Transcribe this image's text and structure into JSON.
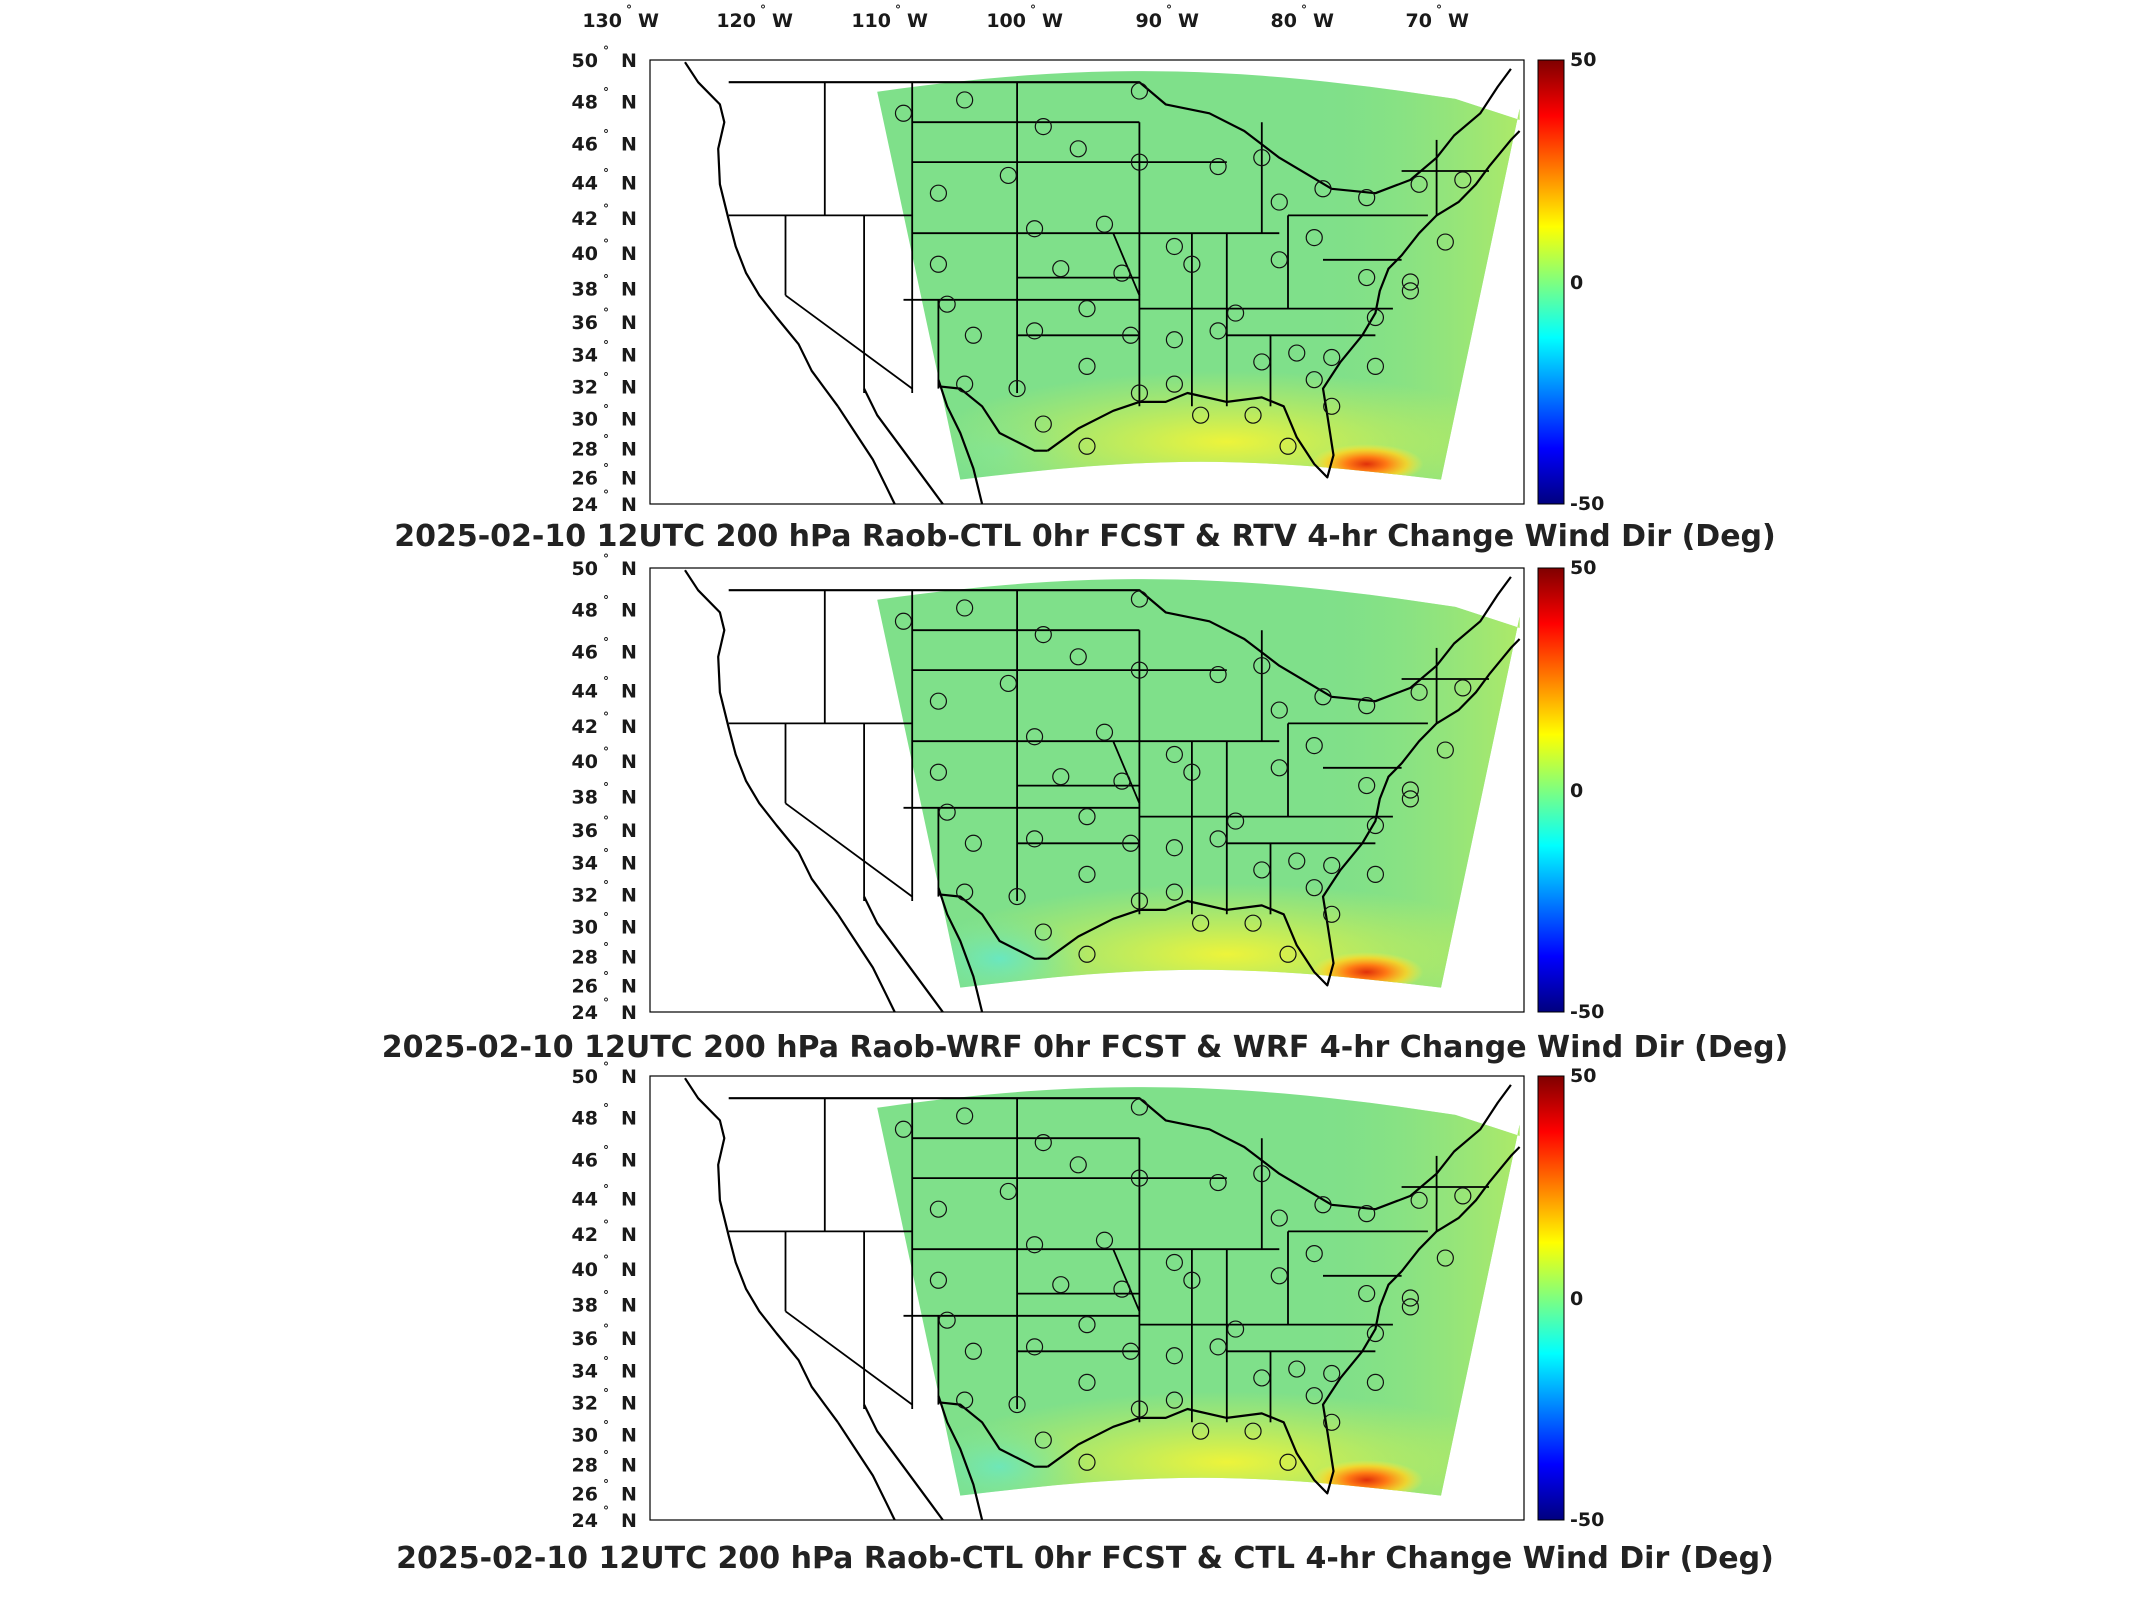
{
  "lon_labels": [
    "130",
    "120",
    "110",
    "100",
    "90",
    "80",
    "70"
  ],
  "lon_suffix": "W",
  "lat_labels": [
    "50",
    "48",
    "46",
    "44",
    "42",
    "40",
    "38",
    "36",
    "34",
    "32",
    "30",
    "28",
    "26",
    "24"
  ],
  "lat_suffix": "N",
  "degree_mark": "°",
  "colorbar": {
    "max_label": "50",
    "mid_label": "0",
    "min_label": "-50",
    "colors": [
      "#00007f",
      "#0000ff",
      "#007fff",
      "#00ffff",
      "#7fff7f",
      "#ffff00",
      "#ff7f00",
      "#ff0000",
      "#7f0000"
    ]
  },
  "panels": [
    {
      "title": "2025-02-10 12UTC 200 hPa Raob-CTL 0hr FCST & RTV 4-hr Change Wind Dir (Deg)"
    },
    {
      "title": "2025-02-10 12UTC 200 hPa Raob-WRF 0hr FCST & WRF 4-hr Change Wind Dir (Deg)"
    },
    {
      "title": "2025-02-10 12UTC 200 hPa Raob-CTL 0hr FCST & CTL 4-hr Change Wind Dir (Deg)"
    }
  ],
  "map_colors": {
    "field_main": "#7fe08a",
    "field_east": "#b4ea63",
    "field_gulf": "#dff04a",
    "hotspot": "#ff5a1a",
    "boundary": "#000000",
    "station": "#111111"
  }
}
